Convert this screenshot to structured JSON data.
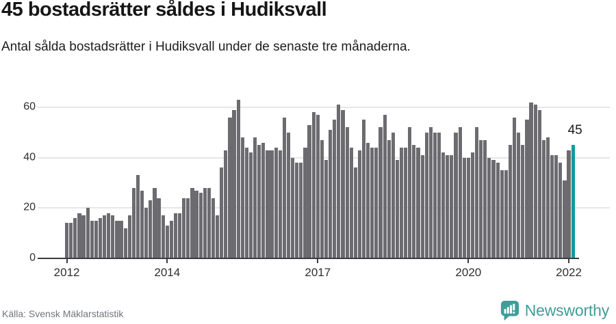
{
  "header": {
    "title": "45 bostadsrätter såldes i Hudiksvall",
    "subtitle": "Antal sålda bostadsrätter i Hudiksvall under de senaste tre månaderna."
  },
  "footer": {
    "source": "Källa: Svensk Mäklarstatistik",
    "brand_name": "Newsworthy"
  },
  "colors": {
    "bar": "#6c6c70",
    "highlight": "#089c9c",
    "gridline": "#e6e6e6",
    "axis": "#3c3c3e",
    "brand_teal": "#3f9d98"
  },
  "chart_data": {
    "type": "bar",
    "title": "Antal sålda bostadsrätter i Hudiksvall, rullande tre månader",
    "x_start_month": "2012-01",
    "x_end_month": "2022-02",
    "values": [
      14,
      14,
      16,
      18,
      17,
      20,
      15,
      15,
      16,
      17,
      18,
      17,
      15,
      15,
      12,
      17,
      28,
      33,
      27,
      20,
      23,
      28,
      24,
      17,
      13,
      15,
      18,
      18,
      24,
      24,
      28,
      27,
      26,
      28,
      28,
      24,
      17,
      36,
      43,
      56,
      59,
      63,
      48,
      44,
      42,
      48,
      45,
      46,
      43,
      43,
      44,
      43,
      56,
      50,
      40,
      38,
      38,
      44,
      53,
      58,
      57,
      47,
      39,
      51,
      55,
      61,
      59,
      52,
      44,
      36,
      43,
      55,
      46,
      44,
      44,
      52,
      57,
      47,
      50,
      39,
      44,
      44,
      52,
      45,
      44,
      41,
      50,
      52,
      50,
      50,
      42,
      41,
      41,
      50,
      52,
      40,
      40,
      42,
      52,
      47,
      47,
      40,
      39,
      38,
      35,
      35,
      45,
      56,
      50,
      45,
      55,
      62,
      61,
      59,
      47,
      48,
      41,
      41,
      38,
      31,
      43,
      45
    ],
    "highlight_index": 121,
    "highlight_value_label": "45",
    "ylim": [
      0,
      60
    ],
    "y_ticks": [
      0,
      20,
      40,
      60
    ],
    "x_ticks": [
      {
        "label": "2012",
        "month_index": 0
      },
      {
        "label": "2014",
        "month_index": 24
      },
      {
        "label": "2017",
        "month_index": 60
      },
      {
        "label": "2020",
        "month_index": 96
      },
      {
        "label": "2022",
        "month_index": 120
      }
    ],
    "grid": true,
    "legend": false
  }
}
